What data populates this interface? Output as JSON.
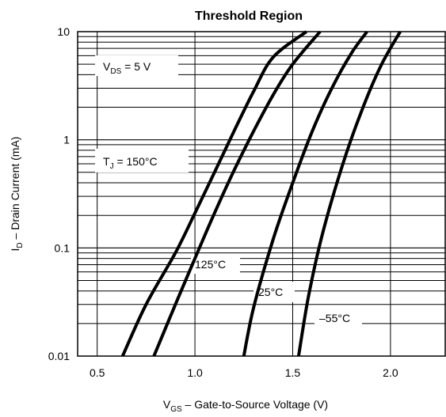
{
  "chart_data": {
    "type": "line",
    "title": "Threshold Region",
    "xlabel": {
      "main": "V",
      "sub": "GS",
      "rest": " –  Gate-to-Source Voltage (V)"
    },
    "ylabel": {
      "main": "I",
      "sub": "D",
      "rest": " – Drain Current (mA)"
    },
    "x_scale": "linear",
    "y_scale": "log",
    "xlim": [
      0.4,
      2.28
    ],
    "ylim": [
      0.01,
      10
    ],
    "x_ticks": [
      {
        "value": 0.5,
        "label": "0.5"
      },
      {
        "value": 1.0,
        "label": "1.0"
      },
      {
        "value": 1.5,
        "label": "1.5"
      },
      {
        "value": 2.0,
        "label": "2.0"
      }
    ],
    "y_ticks": [
      {
        "value": 0.01,
        "label": "0.01"
      },
      {
        "value": 0.1,
        "label": "0.1"
      },
      {
        "value": 1,
        "label": "1"
      },
      {
        "value": 10,
        "label": "10"
      }
    ],
    "grid": true,
    "series": [
      {
        "name": "150°C",
        "points": [
          [
            0.63,
            0.01
          ],
          [
            0.75,
            0.03
          ],
          [
            0.9,
            0.09
          ],
          [
            1.0,
            0.21
          ],
          [
            1.1,
            0.5
          ],
          [
            1.2,
            1.2
          ],
          [
            1.3,
            2.8
          ],
          [
            1.4,
            5.8
          ],
          [
            1.57,
            10
          ]
        ]
      },
      {
        "name": "125°C",
        "points": [
          [
            0.79,
            0.01
          ],
          [
            0.9,
            0.03
          ],
          [
            1.0,
            0.08
          ],
          [
            1.1,
            0.21
          ],
          [
            1.2,
            0.52
          ],
          [
            1.3,
            1.2
          ],
          [
            1.4,
            2.6
          ],
          [
            1.5,
            5.0
          ],
          [
            1.64,
            10
          ]
        ]
      },
      {
        "name": "25°C",
        "points": [
          [
            1.25,
            0.01
          ],
          [
            1.3,
            0.028
          ],
          [
            1.4,
            0.12
          ],
          [
            1.5,
            0.4
          ],
          [
            1.6,
            1.2
          ],
          [
            1.7,
            3.0
          ],
          [
            1.8,
            6.3
          ],
          [
            1.88,
            10
          ]
        ]
      },
      {
        "name": "–55°C",
        "points": [
          [
            1.53,
            0.01
          ],
          [
            1.58,
            0.035
          ],
          [
            1.65,
            0.13
          ],
          [
            1.75,
            0.55
          ],
          [
            1.85,
            1.8
          ],
          [
            1.95,
            4.8
          ],
          [
            2.05,
            10
          ]
        ]
      }
    ],
    "annotations": {
      "vds": {
        "main": "V",
        "sub": "DS",
        "rest": "  = 5 V"
      },
      "tj": {
        "main": "T",
        "sub": "J",
        "rest": " = 150°C"
      },
      "t125": "125°C",
      "t25": "25°C",
      "tm55": "–55°C"
    }
  }
}
